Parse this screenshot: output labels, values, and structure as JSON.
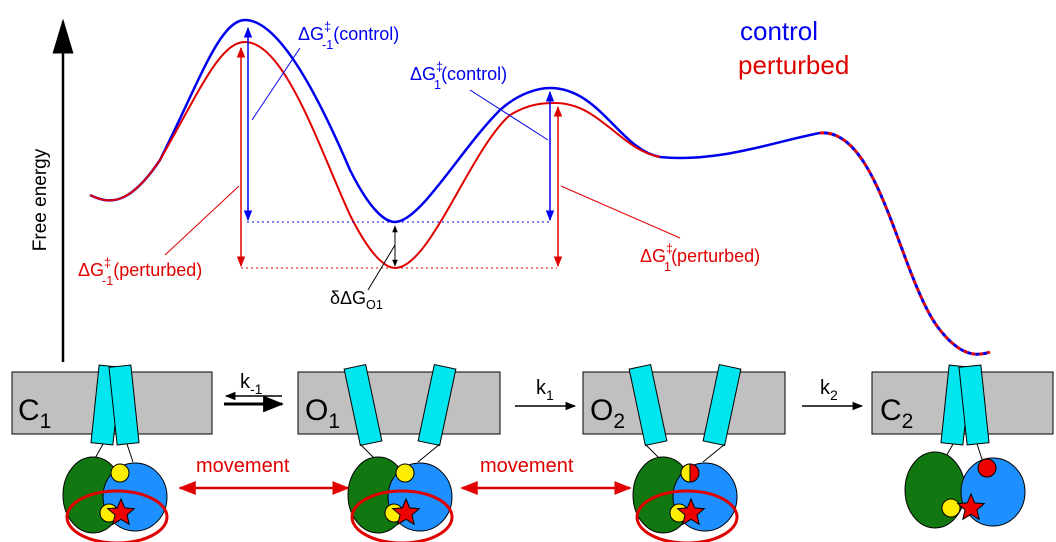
{
  "legend": {
    "control": "control",
    "perturbed": "perturbed"
  },
  "axis_label": "Free energy",
  "barrier_labels": [
    {
      "base": "ΔG",
      "sup": "‡",
      "sub": "-1",
      "suffix": "(control)"
    },
    {
      "base": "ΔG",
      "sup": "‡",
      "sub": "1",
      "suffix": "(control)"
    },
    {
      "base": "ΔG",
      "sup": "‡",
      "sub": "-1",
      "suffix": "(perturbed)"
    },
    {
      "base": "ΔG",
      "sup": "‡",
      "sub": "1",
      "suffix": "(perturbed)"
    }
  ],
  "ddg": {
    "base": "δΔG",
    "sub": "O1"
  },
  "states": [
    {
      "letter": "C",
      "sub": "1"
    },
    {
      "letter": "O",
      "sub": "1"
    },
    {
      "letter": "O",
      "sub": "2"
    },
    {
      "letter": "C",
      "sub": "2"
    }
  ],
  "rates": [
    {
      "letter": "k",
      "sub": "-1"
    },
    {
      "letter": "k",
      "sub": "1"
    },
    {
      "letter": "k",
      "sub": "2"
    }
  ],
  "movement_labels": [
    "movement",
    "movement"
  ]
}
